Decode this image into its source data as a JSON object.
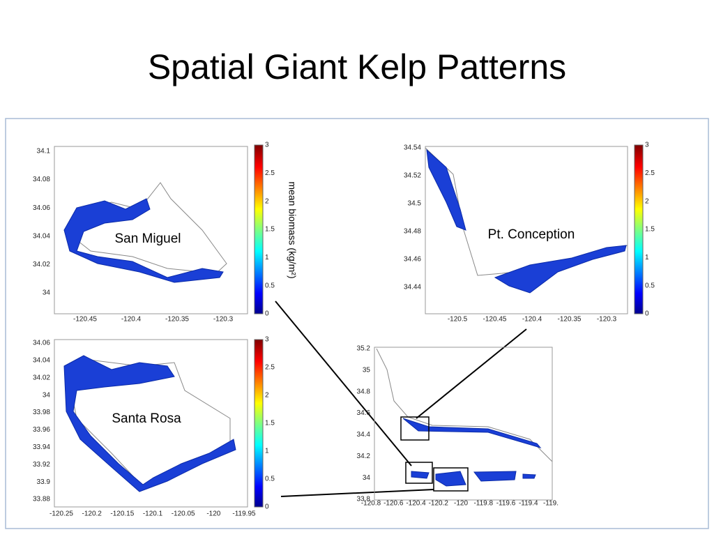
{
  "title": "Spatial Giant Kelp Patterns",
  "colorbar_label": "mean biomass (kg/m²)",
  "panels": [
    {
      "label": "San Miguel",
      "yticks": [
        "34.1",
        "34.08",
        "34.06",
        "34.04",
        "34.02",
        "34"
      ],
      "xticks": [
        "-120.45",
        "-120.4",
        "-120.35",
        "-120.3"
      ],
      "colorbar_ticks": [
        "3",
        "2.5",
        "2",
        "1.5",
        "1",
        "0.5",
        "0"
      ]
    },
    {
      "label": "Pt. Conception",
      "yticks": [
        "34.54",
        "34.52",
        "34.5",
        "34.48",
        "34.46",
        "34.44"
      ],
      "xticks": [
        "-120.5",
        "-120.45",
        "-120.4",
        "-120.35",
        "-120.3"
      ],
      "colorbar_ticks": [
        "3",
        "2.5",
        "2",
        "1.5",
        "1",
        "0.5",
        "0"
      ]
    },
    {
      "label": "Santa Rosa",
      "yticks": [
        "34.06",
        "34.04",
        "34.02",
        "34",
        "33.98",
        "33.96",
        "33.94",
        "33.92",
        "33.9",
        "33.88"
      ],
      "xticks": [
        "-120.25",
        "-120.2",
        "-120.15",
        "-120.1",
        "-120.05",
        "-120",
        "-119.95"
      ],
      "colorbar_ticks": [
        "3",
        "2.5",
        "2",
        "1.5",
        "1",
        "0.5",
        "0"
      ]
    },
    {
      "yticks": [
        "35.2",
        "35",
        "34.8",
        "34.6",
        "34.4",
        "34.2",
        "34",
        "33.8"
      ],
      "xticks": [
        "-120.8",
        "-120.6",
        "-120.4",
        "-120.2",
        "-120",
        "-119.8",
        "-119.6",
        "-119.4",
        "-119."
      ]
    }
  ]
}
